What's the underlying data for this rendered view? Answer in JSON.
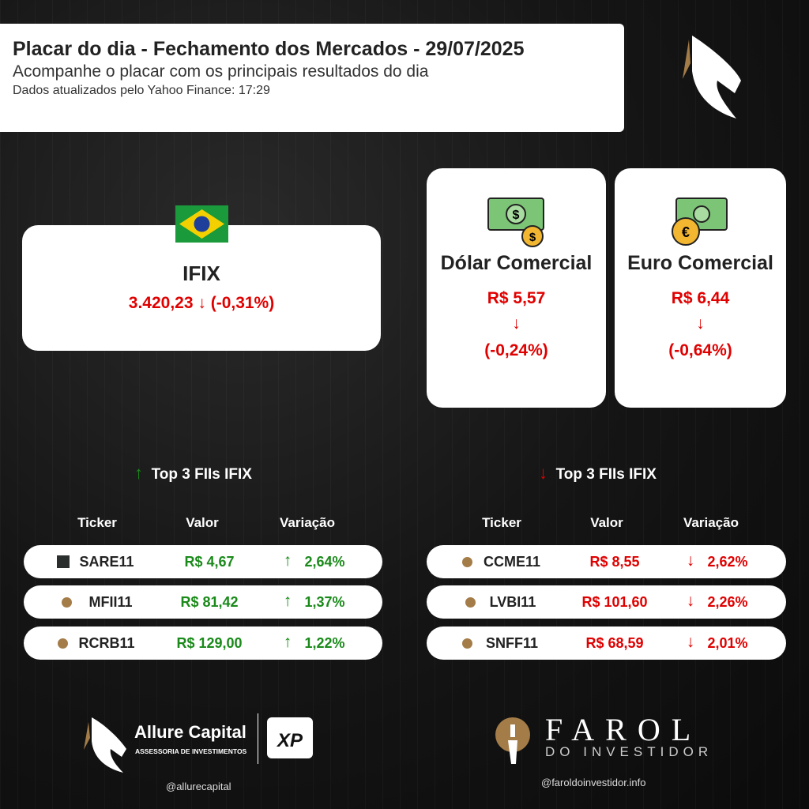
{
  "header": {
    "title": "Placar do dia - Fechamento dos Mercados - 29/07/2025",
    "subtitle": "Acompanhe o placar com os principais resultados do dia",
    "updated": "Dados atualizados pelo Yahoo Finance: 17:29"
  },
  "ifix": {
    "name": "IFIX",
    "value": "3.420,23",
    "arrow": "↓",
    "change": "(-0,31%)"
  },
  "dolar": {
    "name": "Dólar Comercial",
    "value": "R$ 5,57",
    "arrow": "↓",
    "change": "(-0,24%)"
  },
  "euro": {
    "name": "Euro Comercial",
    "value": "R$ 6,44",
    "arrow": "↓",
    "change": "(-0,64%)"
  },
  "top_up": {
    "title": "Top 3 FIIs IFIX",
    "arrow": "↑",
    "columns": [
      "Ticker",
      "Valor",
      "Variação"
    ],
    "rows": [
      {
        "ticker": "SARE11",
        "value": "R$ 4,67",
        "arrow": "↑",
        "change": "2,64%"
      },
      {
        "ticker": "MFII11",
        "value": "R$ 81,42",
        "arrow": "↑",
        "change": "1,37%"
      },
      {
        "ticker": "RCRB11",
        "value": "R$ 129,00",
        "arrow": "↑",
        "change": "1,22%"
      }
    ]
  },
  "top_down": {
    "title": "Top 3 FIIs IFIX",
    "arrow": "↓",
    "columns": [
      "Ticker",
      "Valor",
      "Variação"
    ],
    "rows": [
      {
        "ticker": "CCME11",
        "value": "R$ 8,55",
        "arrow": "↓",
        "change": "2,62%"
      },
      {
        "ticker": "LVBI11",
        "value": "R$ 101,60",
        "arrow": "↓",
        "change": "2,26%"
      },
      {
        "ticker": "SNFF11",
        "value": "R$ 68,59",
        "arrow": "↓",
        "change": "2,01%"
      }
    ]
  },
  "footer": {
    "allure_name": "Allure Capital",
    "allure_tagline": "ASSESSORIA DE INVESTIMENTOS",
    "xp": "XP",
    "allure_handle": "@allurecapital",
    "farol_name": "FAROL",
    "farol_tagline": "DO INVESTIDOR",
    "farol_handle": "@faroldoinvestidor.info"
  },
  "colors": {
    "up": "#1a8a1a",
    "down": "#e00000",
    "gold": "#a47c48"
  }
}
